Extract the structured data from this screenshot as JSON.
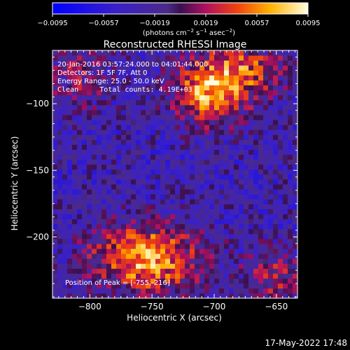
{
  "chart_data": {
    "type": "heatmap",
    "title": "Reconstructed RHESSI Image",
    "xlabel": "Heliocentric X (arcsec)",
    "ylabel": "Heliocentric Y (arcsec)",
    "xlim": [
      -830,
      -633
    ],
    "ylim": [
      -246,
      -60
    ],
    "x_ticks": [
      -800,
      -750,
      -700,
      -650
    ],
    "y_ticks": [
      -100,
      -150,
      -200
    ],
    "x_tick_labels": [
      "−800",
      "−750",
      "−700",
      "−650"
    ],
    "y_tick_labels": [
      "−100",
      "−150",
      "−200"
    ],
    "colorbar": {
      "ticks": [
        -0.0095,
        -0.0057,
        -0.0019,
        0.0019,
        0.0057,
        0.0095
      ],
      "tick_labels": [
        "−0.0095",
        "−0.0057",
        "−0.0019",
        "0.0019",
        "0.0057",
        "0.0095"
      ],
      "range": [
        -0.0095,
        0.0095
      ],
      "unit_label": "(photons cm",
      "unit_exp1": "−2",
      "unit_mid": " s",
      "unit_exp2": "−1",
      "unit_end": " asec",
      "unit_exp3": "−2",
      "unit_close": ")"
    },
    "sources": [
      {
        "x": -755,
        "y": -216,
        "sx": 30,
        "sy": 18,
        "peak": 0.0095
      },
      {
        "x": -705,
        "y": -95,
        "sx": 20,
        "sy": 15,
        "peak": 0.0082
      },
      {
        "x": -680,
        "y": -75,
        "sx": 25,
        "sy": 14,
        "peak": 0.0068
      },
      {
        "x": -810,
        "y": -80,
        "sx": 20,
        "sy": 18,
        "peak": 0.0032
      },
      {
        "x": -650,
        "y": -230,
        "sx": 18,
        "sy": 15,
        "peak": 0.0042
      }
    ],
    "annotations": {
      "line1": "20-Jan-2016 03:57:24.000 to 04:01:44.000",
      "line2": "Detectors: 1F 5F 7F, Att 0",
      "line3": "Energy Range: 25.0 - 50.0 keV",
      "line4": "Clean     Total counts: 4.19E+03",
      "peak": "Position of Peak = [-755,-216]"
    },
    "timestamp": "17-May-2022 17:48"
  },
  "colors": {
    "background": "#000000",
    "text": "#ffffff"
  }
}
